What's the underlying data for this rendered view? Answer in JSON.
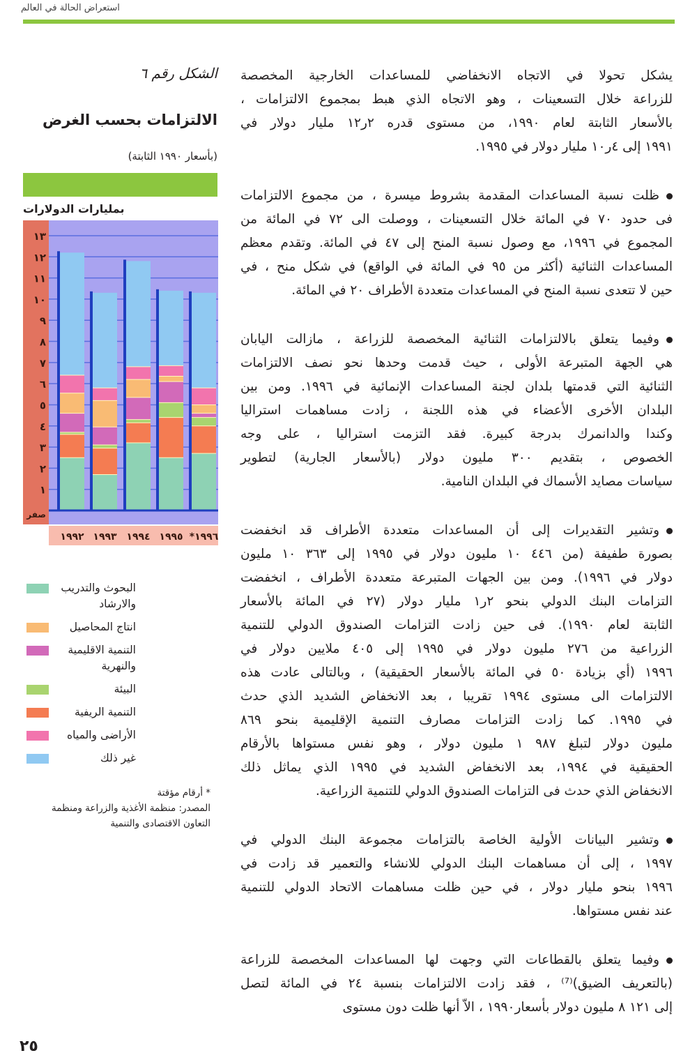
{
  "header": {
    "running_title": "استعراض الحالة في العالم"
  },
  "page_number": "٢٥",
  "body": {
    "paragraphs": [
      {
        "bullet": false,
        "lines": [
          "يشكل تحولا في الاتجاه الانخفاضي للمساعدات الخارجية المخصصة",
          "للزراعة خلال التسعينات ، وهو الاتجاه الذي هبط بمجموع الالتزامات ،",
          "بالأسعار الثابتة لعام ١٩٩٠، من مستوى قدره ٢ر١٢ مليار دولار في",
          "١٩٩١ إلى ٤ر١٠ مليار دولار في ١٩٩٥."
        ]
      },
      {
        "bullet": true,
        "lines": [
          "ظلت نسبة المساعدات المقدمة بشروط ميسرة ، من مجموع الالتزامات",
          "فى حدود ٧٠ في المائة خلال التسعينات ، ووصلت الى ٧٢ في المائة من",
          "المجموع في ١٩٩٦، مع وصول نسبة المنح إلى ٤٧ في المائة. وتقدم معظم",
          "المساعدات الثنائية (أكثر من ٩٥ في المائة في الواقع) في شكل منح ، في",
          "حين لا تتعدى نسبة المنح في المساعدات متعددة الأطراف ٢٠ في المائة."
        ]
      },
      {
        "bullet": true,
        "lines": [
          "وفيما يتعلق بالالتزامات الثنائية المخصصة للزراعة ، مازالت اليابان",
          "هي الجهة المتبرعة الأولى ، حيث قدمت وحدها نحو نصف الالتزامات",
          "الثنائية التي قدمتها بلدان لجنة المساعدات الإنمائية في ١٩٩٦. ومن بين",
          "البلدان الأخرى الأعضاء في هذه اللجنة ، زادت مساهمات استراليا",
          "وكندا والدانمرك بدرجة كبيرة. فقد التزمت استراليا ، على وجه",
          "الخصوص ، بتقديم ٣٠٠ مليون دولار (بالأسعار الجارية) لتطوير",
          "سياسات مصايد الأسماك في البلدان النامية."
        ]
      },
      {
        "bullet": true,
        "lines": [
          "وتشير التقديرات إلى أن المساعدات متعددة الأطراف قد انخفضت",
          "بصورة طفيفة (من ٤٤٦ ١٠ مليون دولار في ١٩٩٥ إلى ٣٦٣ ١٠ مليون",
          "دولار في ١٩٩٦). ومن بين الجهات المتبرعة متعددة الأطراف ، انخفضت",
          "التزامات البنك الدولي بنحو ٢ر١ مليار دولار (٢٧ في المائة بالأسعار",
          "الثابتة لعام ١٩٩٠). فى حين زادت التزامات الصندوق الدولي للتنمية",
          "الزراعية من ٢٧٦ مليون دولار في ١٩٩٥ إلى ٤٠٥ ملايين دولار في",
          "١٩٩٦ (أي بزيادة ٥٠ في المائة بالأسعار الحقيقية) ، وبالتالى عادت هذه",
          "الالتزامات الى مستوى ١٩٩٤ تقريبا ، بعد الانخفاض الشديد الذي حدث",
          "في ١٩٩٥. كما زادت التزامات مصارف التنمية الإقليمية بنحو ٨٦٩",
          "مليون دولار لتبلغ ٩٨٧ ١ مليون دولار ، وهو نفس مستواها بالأرقام",
          "الحقيقية في ١٩٩٤، بعد الانخفاض الشديد في ١٩٩٥ الذي يماثل ذلك",
          "الانخفاض الذي حدث فى التزامات الصندوق الدولي للتنمية الزراعية."
        ]
      },
      {
        "bullet": true,
        "lines": [
          "وتشير البيانات الأولية الخاصة بالتزامات مجموعة البنك الدولي في",
          "١٩٩٧ ، إلى أن مساهمات البنك الدولي للانشاء والتعمير قد زادت في",
          "١٩٩٦ بنحو مليار دولار ، في حين ظلت مساهمات الاتحاد الدولي للتنمية",
          "عند نفس مستواها."
        ]
      },
      {
        "bullet": true,
        "lines": [
          "وفيما يتعلق بالقطاعات التي وجهت لها المساعدات المخصصة للزراعة",
          "(بالتعريف الضيق)⁽⁷⁾ ، فقد زادت الالتزامات بنسبة ٢٤ في المائة لتصل",
          "إلى ١٢١ ٨ مليون دولار بأسعار١٩٩٠ ، الاّ أنها ظلت دون مستوى"
        ]
      }
    ]
  },
  "figure": {
    "number": "الشكل رقم ٦",
    "title": "الالتزامات بحسب الغرض",
    "subtitle": "(بأسعار ١٩٩٠ الثابتة)",
    "notes": [
      "* أرقام مؤقتة",
      "المصدر: منظمة الأغذية والزراعة ومنظمة",
      "التعاون الاقتصادى والتنمية"
    ]
  },
  "chart_data": {
    "type": "stacked-bar",
    "ylabel": "بمليارات الدولارات",
    "ylim": [
      0,
      13
    ],
    "y_tick_labels": [
      "صفر",
      "١",
      "٢",
      "٣",
      "٤",
      "٥",
      "٦",
      "٧",
      "٨",
      "٩",
      "١٠",
      "١١",
      "١٢",
      "١٣"
    ],
    "categories": [
      "١٩٩٢",
      "١٩٩٣",
      "١٩٩٤",
      "١٩٩٥",
      "*١٩٩٦"
    ],
    "series": [
      {
        "name": "البحوث والتدريب والارشاد",
        "color": "#8ed2b4",
        "values": [
          2.5,
          1.7,
          3.2,
          2.5,
          2.7
        ]
      },
      {
        "name": "التنمية الريفية",
        "color": "#f47c52",
        "values": [
          1.1,
          1.25,
          0.95,
          1.9,
          1.3
        ]
      },
      {
        "name": "البيئة",
        "color": "#a9d46f",
        "values": [
          0.1,
          0.15,
          0.15,
          0.7,
          0.4
        ]
      },
      {
        "name": "التنمية الاقليمية والنهرية",
        "color": "#d26ab9",
        "values": [
          0.9,
          0.85,
          1.05,
          1.0,
          0.2
        ]
      },
      {
        "name": "انتاج المحاصيل",
        "color": "#f9bb74",
        "values": [
          0.95,
          1.25,
          0.85,
          0.25,
          0.4
        ]
      },
      {
        "name": "الأراضى والمياه",
        "color": "#f274ad",
        "values": [
          0.85,
          0.6,
          0.6,
          0.5,
          0.8
        ]
      },
      {
        "name": "غير ذلك",
        "color": "#90c9f2",
        "values": [
          5.8,
          4.5,
          5.0,
          3.55,
          4.5
        ]
      }
    ],
    "legend_order": [
      "البحوث والتدريب والارشاد",
      "انتاج المحاصيل",
      "التنمية الاقليمية والنهرية",
      "البيئة",
      "التنمية الريفية",
      "الأراضى والمياه",
      "غير ذلك"
    ],
    "colors": {
      "background": "#a9a3f0",
      "axis_strip": "#e2735f",
      "year_strip": "#f8bcae",
      "posts": "#1f3fbf",
      "band": "#8cc63f"
    }
  }
}
